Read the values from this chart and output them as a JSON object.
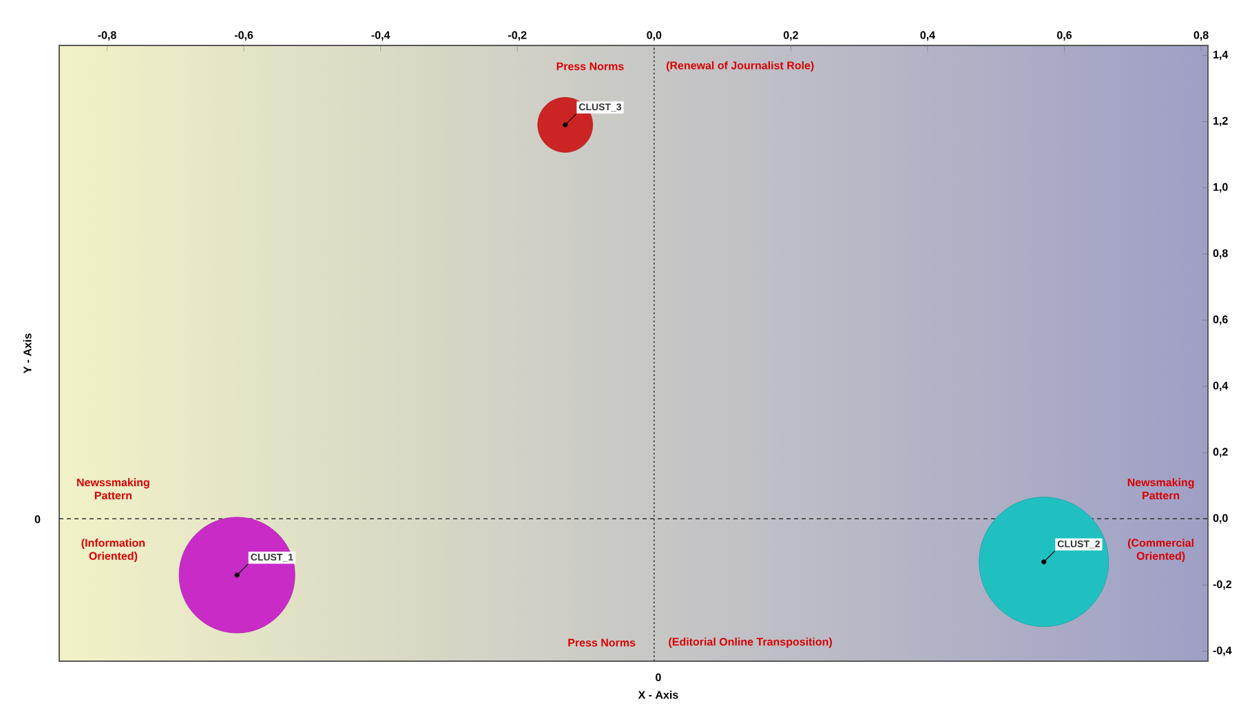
{
  "chart_data": {
    "type": "bubble",
    "xlabel": "X - Axis",
    "ylabel": "Y - Axis",
    "series": [
      {
        "name": "CLUST_1",
        "color": "#c92cc6",
        "x": [
          -0.61
        ],
        "values": [
          -0.17
        ],
        "sizes": [
          0.8
        ]
      },
      {
        "name": "CLUST_2",
        "color": "#20c0c0",
        "x": [
          0.57
        ],
        "values": [
          -0.13
        ],
        "sizes": [
          1
        ]
      },
      {
        "name": "CLUST_3",
        "color": "#cc2424",
        "x": [
          -0.13
        ],
        "values": [
          1.19
        ],
        "sizes": [
          0.18
        ]
      }
    ],
    "xlim": [
      -0.87,
      0.81
    ],
    "ylim": [
      -0.43,
      1.43
    ],
    "xticks": [
      {
        "value": -0.8,
        "label": "-0,8"
      },
      {
        "value": -0.6,
        "label": "-0,6"
      },
      {
        "value": -0.4,
        "label": "-0,4"
      },
      {
        "value": -0.2,
        "label": "-0,2"
      },
      {
        "value": 0,
        "label": "0,0"
      },
      {
        "value": 0.2,
        "label": "0,2"
      },
      {
        "value": 0.4,
        "label": "0,4"
      },
      {
        "value": 0.6,
        "label": "0,6"
      },
      {
        "value": 0.8,
        "label": "0,8"
      }
    ],
    "yticks": [
      {
        "value": 1.4,
        "label": "1,4"
      },
      {
        "value": 1.2,
        "label": "1,2"
      },
      {
        "value": 1.0,
        "label": "1,0"
      },
      {
        "value": 0.8,
        "label": "0,8"
      },
      {
        "value": 0.6,
        "label": "0,6"
      },
      {
        "value": 0.4,
        "label": "0,4"
      },
      {
        "value": 0.2,
        "label": "0,2"
      },
      {
        "value": 0,
        "label": "0,0"
      },
      {
        "value": -0.2,
        "label": "-0,2"
      },
      {
        "value": -0.4,
        "label": "-0,4"
      }
    ],
    "ref_lines": [
      {
        "axis": "x",
        "value": 0,
        "line_style": "dotted",
        "color": "#333333"
      },
      {
        "axis": "y",
        "value": 0,
        "line_style": "dashed",
        "color": "#333333"
      }
    ],
    "annotations": [
      "Press Norms",
      "(Renewal of Journalist Role)",
      "Newssmaking Pattern",
      "(Information Oriented)",
      "Newsmaking Pattern",
      "(Commercial Oriented)",
      "Press Norms",
      "(Editorial Online Transposition)",
      "0",
      "0"
    ],
    "grid": false
  }
}
